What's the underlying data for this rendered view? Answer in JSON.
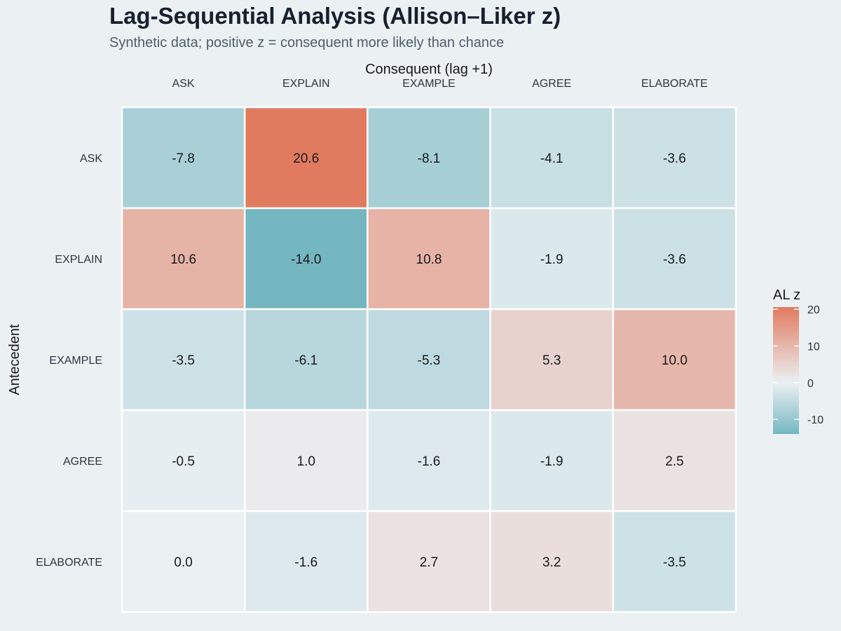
{
  "title": "Lag-Sequential Analysis (Allison–Liker z)",
  "subtitle": "Synthetic data; positive z = consequent more likely than chance",
  "chart_data": {
    "type": "heatmap",
    "xlabel": "Consequent (lag +1)",
    "ylabel": "Antecedent",
    "x_categories": [
      "ASK",
      "EXPLAIN",
      "EXAMPLE",
      "AGREE",
      "ELABORATE"
    ],
    "y_categories": [
      "ASK",
      "EXPLAIN",
      "EXAMPLE",
      "AGREE",
      "ELABORATE"
    ],
    "values": [
      [
        -7.8,
        20.6,
        -8.1,
        -4.1,
        -3.6
      ],
      [
        10.6,
        -14.0,
        10.8,
        -1.9,
        -3.6
      ],
      [
        -3.5,
        -6.1,
        -5.3,
        5.3,
        10.0
      ],
      [
        -0.5,
        1.0,
        -1.6,
        -1.9,
        2.5
      ],
      [
        0.0,
        -1.6,
        2.7,
        3.2,
        -3.5
      ]
    ],
    "legend": {
      "title": "AL z",
      "ticks": [
        20,
        10,
        0,
        -10
      ],
      "min": -14.0,
      "max": 20.6,
      "placement": "right"
    },
    "colors": {
      "low": "#74b7c1",
      "mid": "#ebf0f3",
      "high": "#e17b60",
      "grid_line": "#ffffff",
      "text": "#1a1a1a"
    },
    "x_axis_position": "top"
  }
}
